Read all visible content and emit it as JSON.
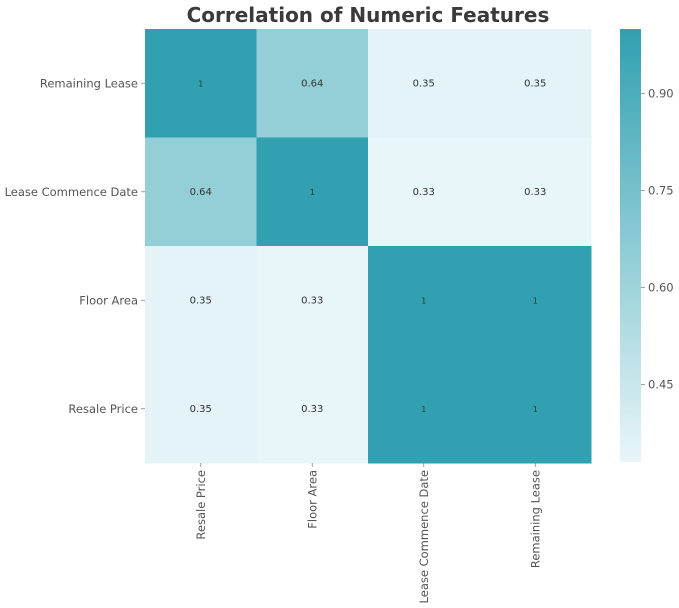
{
  "chart_data": {
    "type": "heatmap",
    "title": "Correlation of Numeric Features",
    "x_categories": [
      "Resale Price",
      "Floor Area",
      "Lease Commence Date",
      "Remaining Lease"
    ],
    "y_categories": [
      "Remaining Lease",
      "Lease Commence Date",
      "Floor Area",
      "Resale Price"
    ],
    "values": [
      [
        1,
        0.64,
        0.35,
        0.35
      ],
      [
        0.64,
        1,
        0.33,
        0.33
      ],
      [
        0.35,
        0.33,
        1,
        1
      ],
      [
        0.35,
        0.33,
        1,
        1
      ]
    ],
    "annotations": [
      [
        "1",
        "0.64",
        "0.35",
        "0.35"
      ],
      [
        "0.64",
        "1",
        "0.33",
        "0.33"
      ],
      [
        "0.35",
        "0.33",
        "1",
        "1"
      ],
      [
        "0.35",
        "0.33",
        "1",
        "1"
      ]
    ],
    "colorbar": {
      "range": [
        0.33,
        1
      ],
      "ticks": [
        0.45,
        0.6,
        0.75,
        0.9
      ],
      "tick_labels": [
        "0.45",
        "0.60",
        "0.75",
        "0.90"
      ],
      "color_low": "#e9f6f9",
      "color_high": "#31a0b0"
    }
  }
}
